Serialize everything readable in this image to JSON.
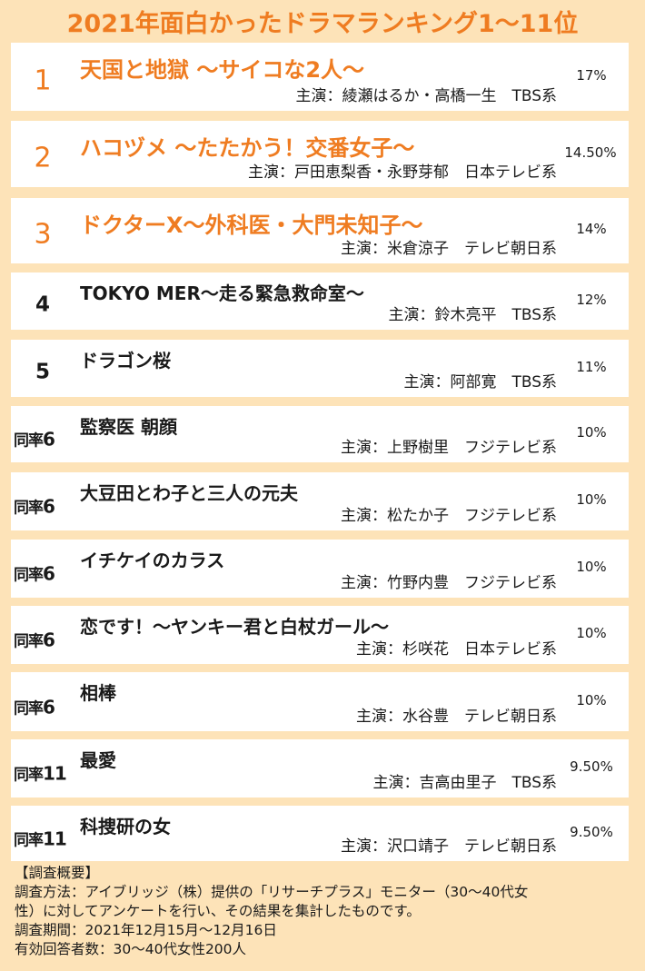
{
  "title": "2021年面白かったドラマランキング1〜11位",
  "rankings": [
    {
      "rank": "1",
      "title": "天国と地獄 〜サイコな2人〜",
      "cast": "主演：綾瀬はるか・高橋一生　TBS系",
      "percent": "17%"
    },
    {
      "rank": "2",
      "title": "ハコヅメ 〜たたかう！交番女子〜",
      "cast": "主演：戸田恵梨香・永野芽郁　日本テレビ系",
      "percent": "14.50%"
    },
    {
      "rank": "3",
      "title": "ドクターX〜外科医・大門未知子〜",
      "cast": "主演：米倉涼子　テレビ朝日系",
      "percent": "14%"
    },
    {
      "rank": "4",
      "title": "TOKYO MER〜走る緊急救命室〜",
      "cast": "主演：鈴木亮平　TBS系",
      "percent": "12%"
    },
    {
      "rank": "5",
      "title": "ドラゴン桜",
      "cast": "主演：阿部寛　TBS系",
      "percent": "11%"
    },
    {
      "rank_prefix": "同率",
      "rank_num": "6",
      "title": "監察医 朝顔",
      "cast": "主演：上野樹里　フジテレビ系",
      "percent": "10%"
    },
    {
      "rank_prefix": "同率",
      "rank_num": "6",
      "title": "大豆田とわ子と三人の元夫",
      "cast": "主演：松たか子　フジテレビ系",
      "percent": "10%"
    },
    {
      "rank_prefix": "同率",
      "rank_num": "6",
      "title": "イチケイのカラス",
      "cast": "主演：竹野内豊　フジテレビ系",
      "percent": "10%"
    },
    {
      "rank_prefix": "同率",
      "rank_num": "6",
      "title": "恋です！〜ヤンキー君と白杖ガール〜",
      "cast": "主演：杉咲花　日本テレビ系",
      "percent": "10%"
    },
    {
      "rank_prefix": "同率",
      "rank_num": "6",
      "title": "相棒",
      "cast": "主演：水谷豊　テレビ朝日系",
      "percent": "10%"
    },
    {
      "rank_prefix": "同率",
      "rank_num": "11",
      "title": "最愛",
      "cast": "主演：吉高由里子　TBS系",
      "percent": "9.50%"
    },
    {
      "rank_prefix": "同率",
      "rank_num": "11",
      "title": "科捜研の女",
      "cast": "主演：沢口靖子　テレビ朝日系",
      "percent": "9.50%"
    }
  ],
  "survey": {
    "heading": "【調査概要】",
    "method_line1": "調査方法：アイブリッジ（株）提供の「リサーチプラス」モニター（30〜40代女",
    "method_line2": "性）に対してアンケートを行い、その結果を集計したものです。",
    "period": "調査期間：2021年12月15月〜12月16日",
    "respondents": "有効回答者数：30〜40代女性200人"
  },
  "colors": {
    "accent": "#ef7c21",
    "background": "#fde3b8",
    "row": "#ffffff"
  }
}
